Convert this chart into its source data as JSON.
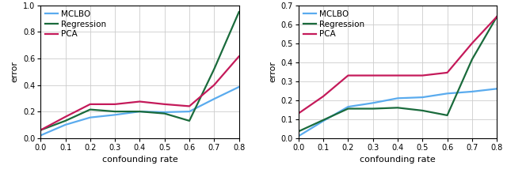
{
  "x": [
    0.0,
    0.1,
    0.2,
    0.3,
    0.4,
    0.5,
    0.6,
    0.7,
    0.8
  ],
  "left": {
    "mclbo": [
      0.02,
      0.1,
      0.155,
      0.175,
      0.2,
      0.195,
      0.2,
      0.295,
      0.385
    ],
    "regression": [
      0.06,
      0.13,
      0.215,
      0.2,
      0.2,
      0.185,
      0.13,
      0.52,
      0.95
    ],
    "pca": [
      0.06,
      0.16,
      0.255,
      0.255,
      0.275,
      0.255,
      0.24,
      0.4,
      0.615
    ],
    "ylim": [
      0.0,
      1.0
    ],
    "yticks": [
      0.0,
      0.2,
      0.4,
      0.6,
      0.8,
      1.0
    ]
  },
  "right": {
    "mclbo": [
      0.01,
      0.09,
      0.165,
      0.185,
      0.21,
      0.215,
      0.235,
      0.245,
      0.26
    ],
    "regression": [
      0.035,
      0.095,
      0.155,
      0.155,
      0.16,
      0.145,
      0.12,
      0.415,
      0.64
    ],
    "pca": [
      0.13,
      0.22,
      0.33,
      0.33,
      0.33,
      0.33,
      0.345,
      0.5,
      0.64
    ],
    "ylim": [
      0.0,
      0.7
    ],
    "yticks": [
      0.0,
      0.1,
      0.2,
      0.3,
      0.4,
      0.5,
      0.6,
      0.7
    ]
  },
  "color_mclbo": "#5aabee",
  "color_regression": "#1a6b3c",
  "color_pca": "#c41a5a",
  "xlabel": "confounding rate",
  "ylabel": "error",
  "legend_labels": [
    "MCLBO",
    "Regression",
    "PCA"
  ],
  "linewidth": 1.6,
  "legend_fontsize": 7.5,
  "tick_fontsize": 7,
  "label_fontsize": 8
}
